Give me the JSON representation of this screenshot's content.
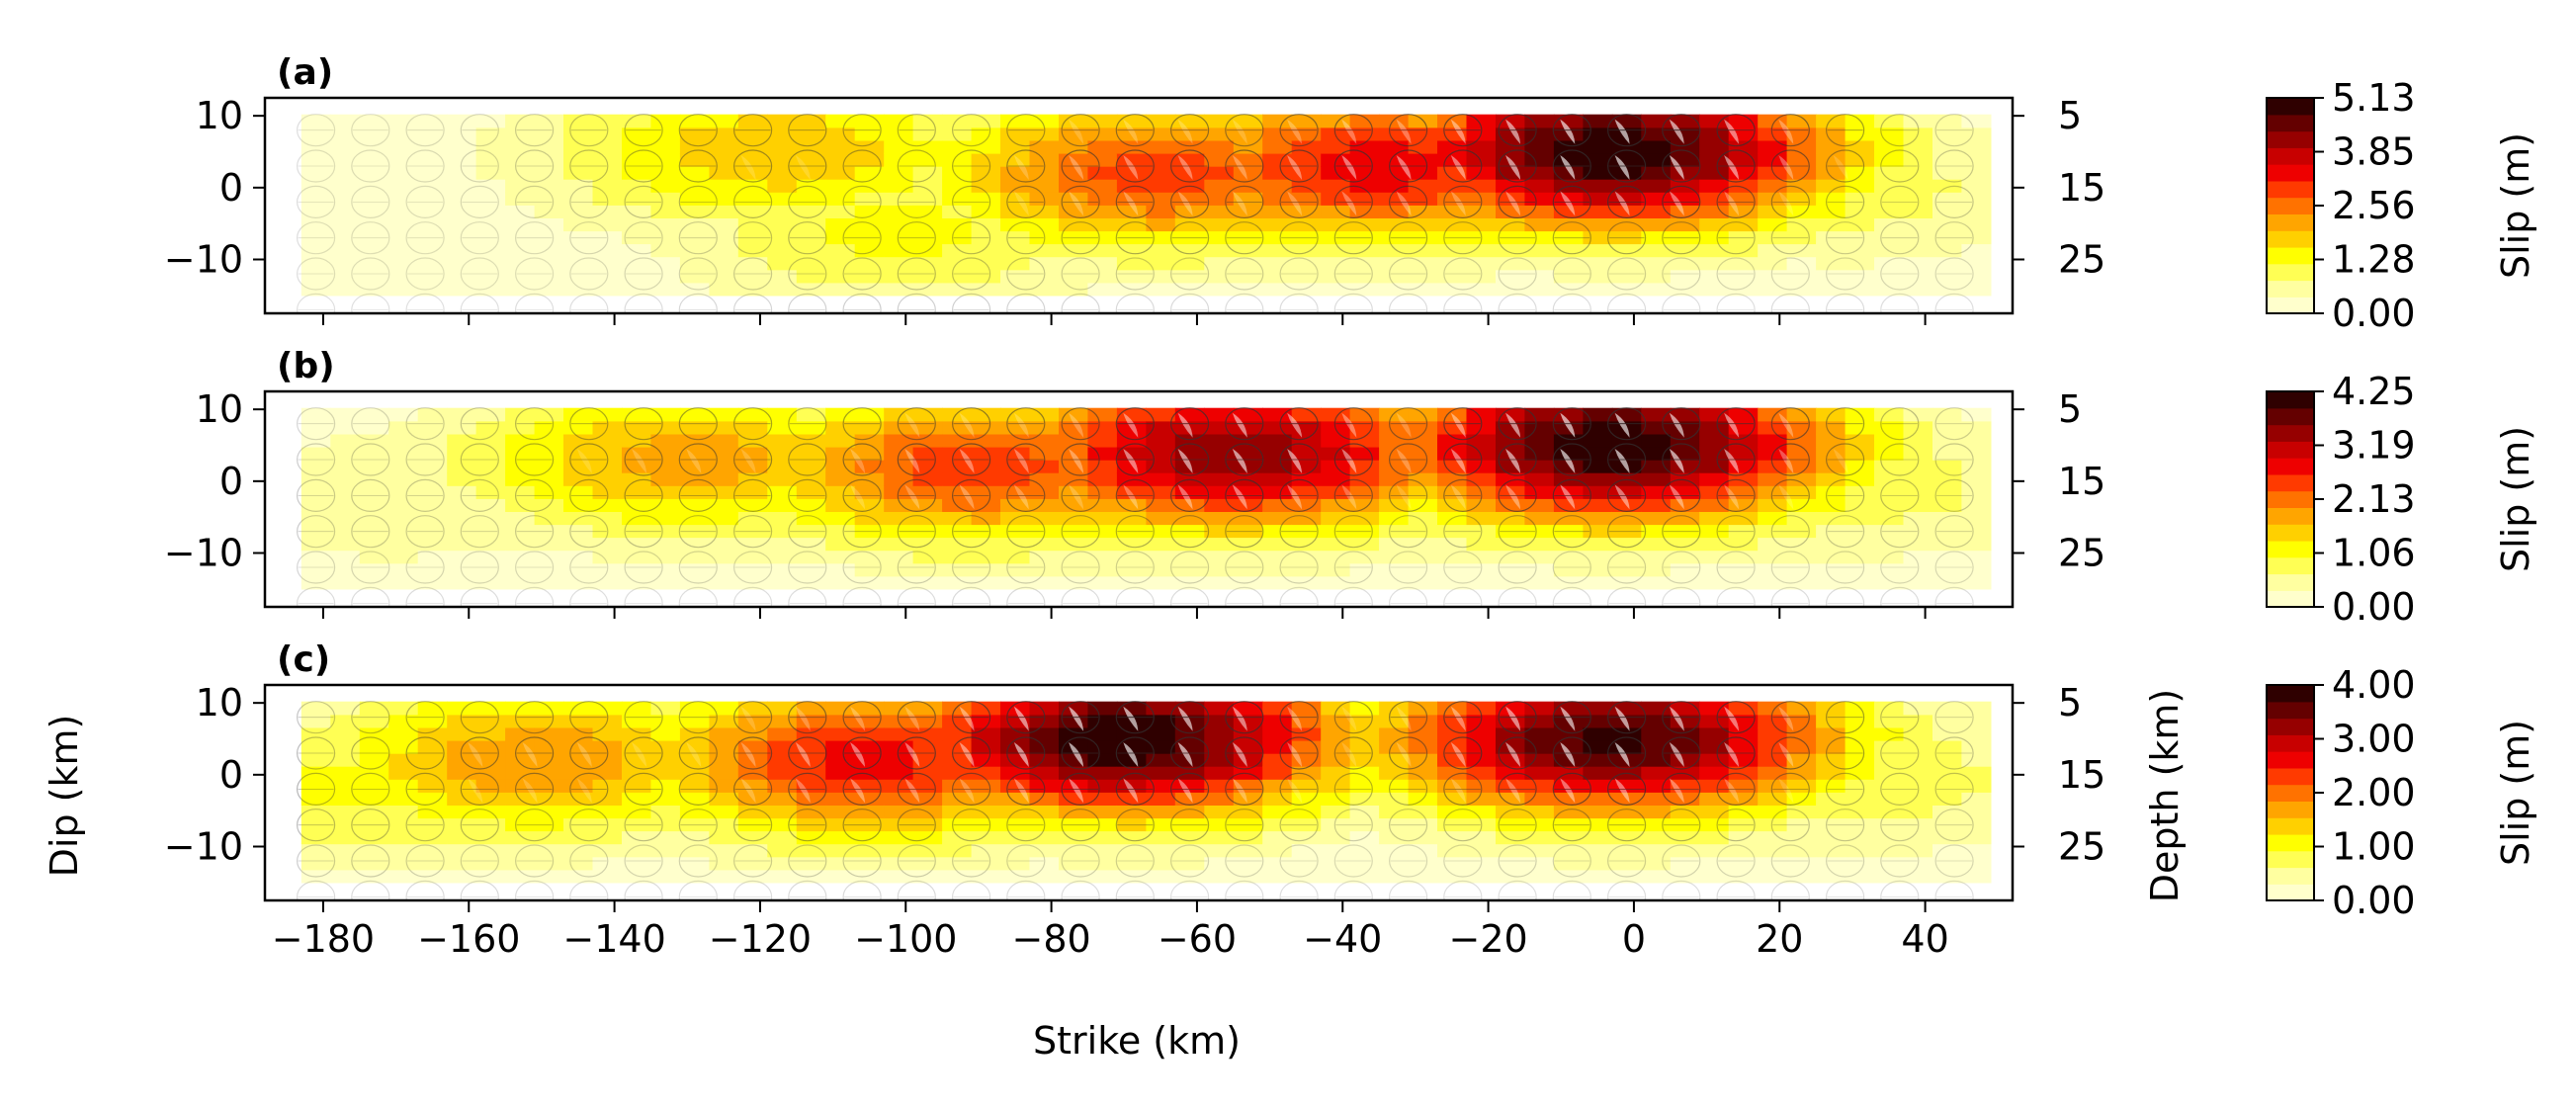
{
  "figure": {
    "xlabel": "Strike (km)",
    "ylabel": "Dip (km)",
    "depth_label": "Depth (km)",
    "colorbar_label": "Slip (m)",
    "colormap": [
      "#ffffcc",
      "#ffffa0",
      "#ffff54",
      "#ffff00",
      "#ffd000",
      "#ffa500",
      "#ff7200",
      "#ff3a00",
      "#ee0000",
      "#c80000",
      "#960000",
      "#640000",
      "#2f0000"
    ]
  },
  "chart_data": [
    {
      "type": "heatmap",
      "panel": "(a)",
      "title": "",
      "xlabel": "",
      "ylabel": "",
      "xlim": [
        -188,
        52
      ],
      "ylim": [
        -17.5,
        12.5
      ],
      "x_ticks": [
        -180,
        -160,
        -140,
        -120,
        -100,
        -80,
        -60,
        -40,
        -20,
        0,
        20,
        40
      ],
      "x_tick_labels_shown": false,
      "y_ticks": [
        10,
        0,
        -10
      ],
      "depth_ticks": [
        5,
        15,
        25
      ],
      "fault_extent": {
        "strike": [
          -183,
          47
        ],
        "dip": [
          -15,
          10
        ]
      },
      "slip_max_m": 5.13,
      "colorbar_ticks": [
        "0.00",
        "1.28",
        "2.56",
        "3.85",
        "5.13"
      ],
      "slip_patches": [
        {
          "strike": -3,
          "dip": 5,
          "slip": 5.13
        },
        {
          "strike": -35,
          "dip": 3,
          "slip": 3.4
        },
        {
          "strike": -65,
          "dip": 2,
          "slip": 3.0
        },
        {
          "strike": -118,
          "dip": 5,
          "slip": 1.9
        },
        {
          "strike": -100,
          "dip": -6,
          "slip": 1.3
        },
        {
          "strike": 28,
          "dip": 0,
          "slip": 1.0
        },
        {
          "strike": -170,
          "dip": -2,
          "slip": 0.1
        }
      ]
    },
    {
      "type": "heatmap",
      "panel": "(b)",
      "title": "",
      "xlabel": "",
      "ylabel": "",
      "xlim": [
        -188,
        52
      ],
      "ylim": [
        -17.5,
        12.5
      ],
      "x_ticks": [
        -180,
        -160,
        -140,
        -120,
        -100,
        -80,
        -60,
        -40,
        -20,
        0,
        20,
        40
      ],
      "x_tick_labels_shown": false,
      "y_ticks": [
        10,
        0,
        -10
      ],
      "depth_ticks": [
        5,
        15,
        25
      ],
      "fault_extent": {
        "strike": [
          -183,
          47
        ],
        "dip": [
          -15,
          10
        ]
      },
      "slip_max_m": 4.25,
      "colorbar_ticks": [
        "0.00",
        "1.06",
        "2.13",
        "3.19",
        "4.25"
      ],
      "slip_patches": [
        {
          "strike": -3,
          "dip": 5,
          "slip": 4.25
        },
        {
          "strike": -55,
          "dip": 4,
          "slip": 3.6
        },
        {
          "strike": -90,
          "dip": 2,
          "slip": 2.5
        },
        {
          "strike": -130,
          "dip": 3,
          "slip": 1.8
        },
        {
          "strike": 28,
          "dip": 0,
          "slip": 0.9
        },
        {
          "strike": -170,
          "dip": -2,
          "slip": 0.6
        }
      ]
    },
    {
      "type": "heatmap",
      "panel": "(c)",
      "title": "",
      "xlabel": "Strike (km)",
      "ylabel": "Dip (km)",
      "xlim": [
        -188,
        52
      ],
      "ylim": [
        -17.5,
        12.5
      ],
      "x_ticks": [
        -180,
        -160,
        -140,
        -120,
        -100,
        -80,
        -60,
        -40,
        -20,
        0,
        20,
        40
      ],
      "x_tick_labels_shown": true,
      "y_ticks": [
        10,
        0,
        -10
      ],
      "depth_ticks": [
        5,
        15,
        25
      ],
      "fault_extent": {
        "strike": [
          -183,
          47
        ],
        "dip": [
          -15,
          10
        ]
      },
      "slip_max_m": 4.0,
      "colorbar_ticks": [
        "0.00",
        "1.00",
        "2.00",
        "3.00",
        "4.00"
      ],
      "slip_patches": [
        {
          "strike": -3,
          "dip": 5,
          "slip": 3.8
        },
        {
          "strike": -70,
          "dip": 5,
          "slip": 4.0
        },
        {
          "strike": -105,
          "dip": 2,
          "slip": 2.6
        },
        {
          "strike": -150,
          "dip": 2,
          "slip": 1.8
        },
        {
          "strike": 28,
          "dip": 0,
          "slip": 0.9
        },
        {
          "strike": -175,
          "dip": -2,
          "slip": 1.0
        }
      ]
    }
  ]
}
